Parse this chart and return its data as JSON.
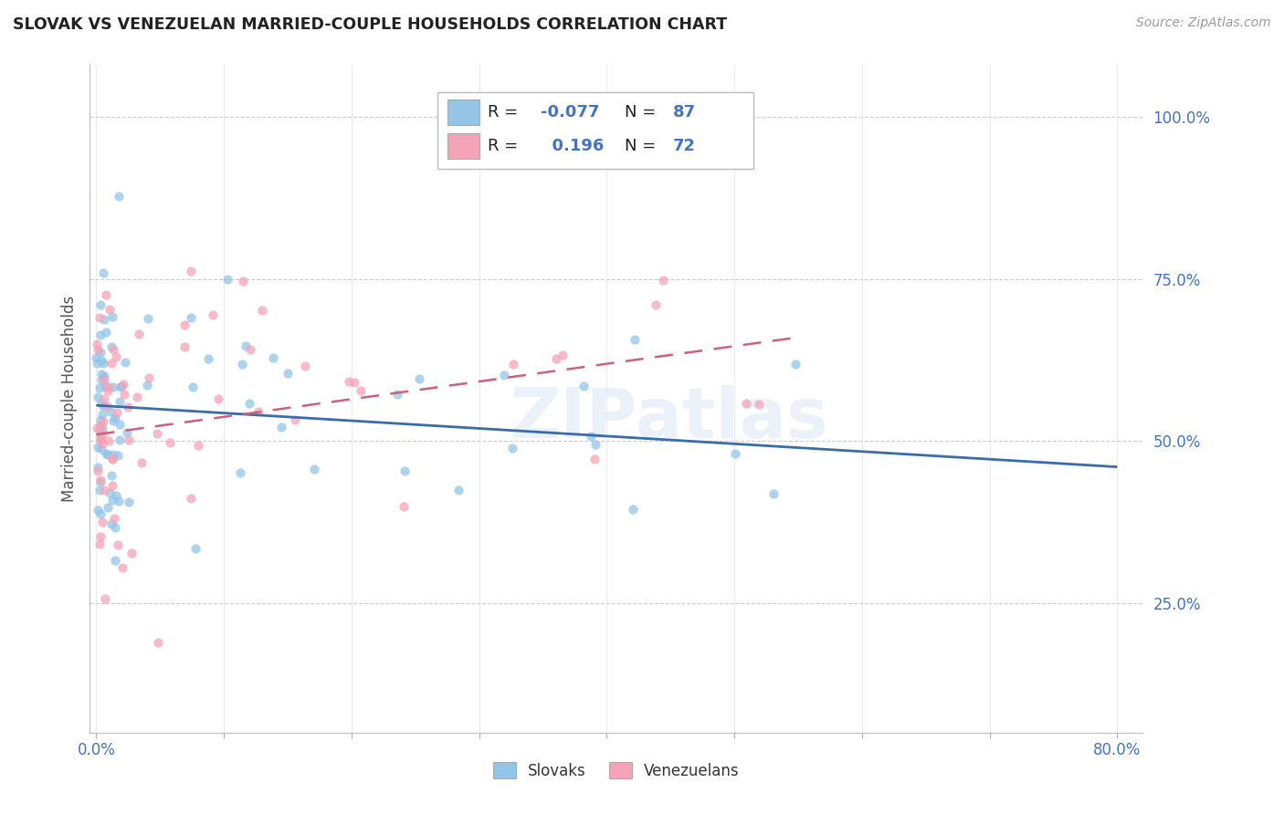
{
  "title": "SLOVAK VS VENEZUELAN MARRIED-COUPLE HOUSEHOLDS CORRELATION CHART",
  "source": "Source: ZipAtlas.com",
  "ylabel": "Married-couple Households",
  "ytick_labels": [
    "25.0%",
    "50.0%",
    "75.0%",
    "100.0%"
  ],
  "ytick_vals": [
    0.25,
    0.5,
    0.75,
    1.0
  ],
  "xlim": [
    -0.005,
    0.82
  ],
  "ylim": [
    0.05,
    1.08
  ],
  "R_slovak": -0.077,
  "N_slovak": 87,
  "R_venezuelan": 0.196,
  "N_venezuelan": 72,
  "color_slovak": "#92C5E8",
  "color_venezuelan": "#F4A3B8",
  "line_color_slovak": "#3A6BAA",
  "line_color_venezuelan": "#D0607A",
  "watermark": "ZIPatlas",
  "legend_label_slovak": "Slovaks",
  "legend_label_venezuelan": "Venezuelans",
  "slovak_trend_x0": 0.0,
  "slovak_trend_y0": 0.555,
  "slovak_trend_x1": 0.8,
  "slovak_trend_y1": 0.46,
  "venezuelan_trend_x0": 0.0,
  "venezuelan_trend_y0": 0.51,
  "venezuelan_trend_x1": 0.55,
  "venezuelan_trend_y1": 0.66
}
